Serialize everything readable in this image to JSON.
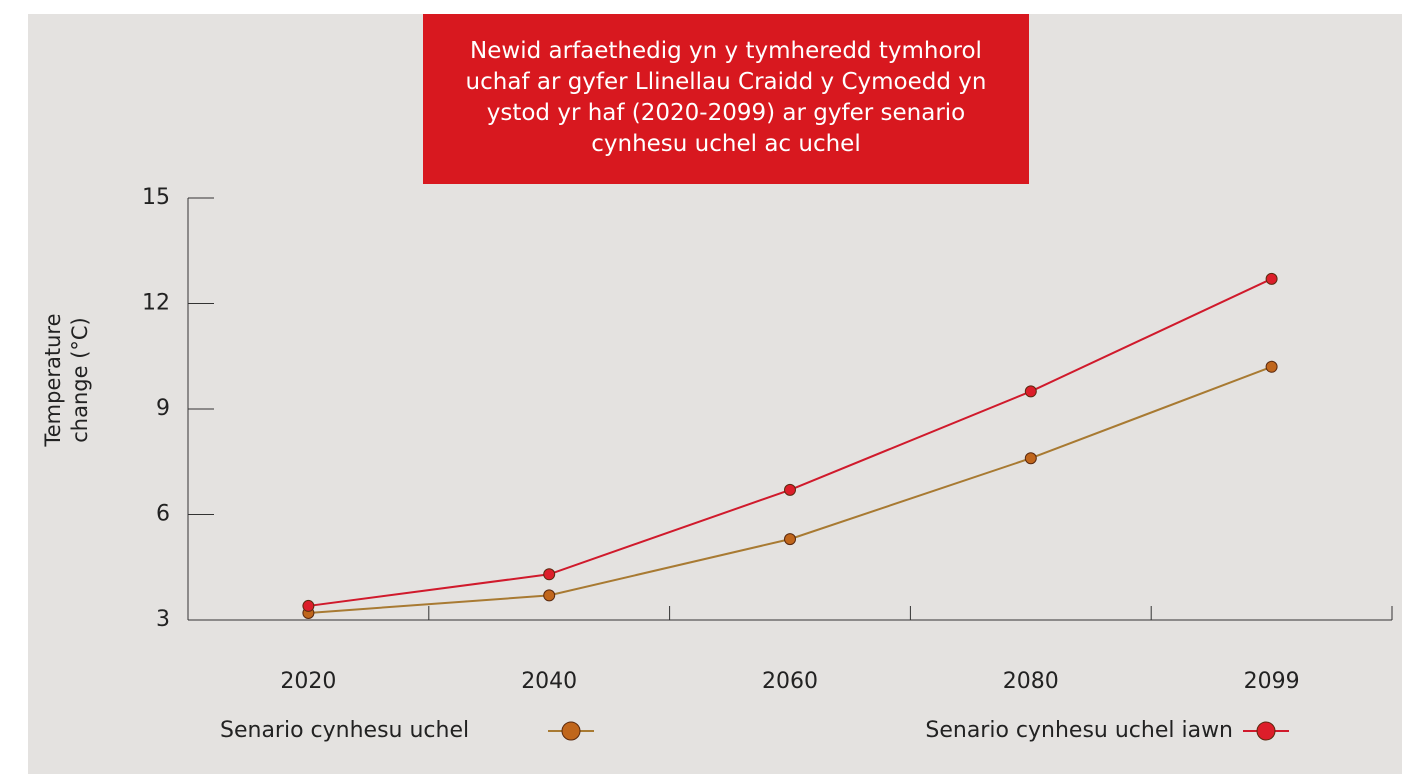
{
  "chart_data": {
    "type": "line",
    "title": "Newid arfaethedig yn y tymheredd tymhorol uchaf ar gyfer Llinellau Craidd y Cymoedd yn ystod yr haf (2020-2099) ar gyfer senario cynhesu uchel ac uchel",
    "y_label": "Temperature change (°C)",
    "categories": [
      "2020",
      "2040",
      "2060",
      "2080",
      "2099"
    ],
    "series": [
      {
        "name": "Senario cynhesu uchel",
        "color": "#a87a32",
        "marker_color": "#c0661c",
        "values": [
          3.2,
          3.7,
          5.3,
          7.6,
          10.2
        ]
      },
      {
        "name": "Senario cynhesu uchel iawn",
        "color": "#d01a2c",
        "marker_color": "#dc1e2a",
        "values": [
          3.4,
          4.3,
          6.7,
          9.5,
          12.7
        ]
      }
    ],
    "ylim": [
      3,
      15
    ],
    "yticks": [
      3,
      6,
      9,
      12,
      15
    ],
    "legend": "bottom"
  }
}
